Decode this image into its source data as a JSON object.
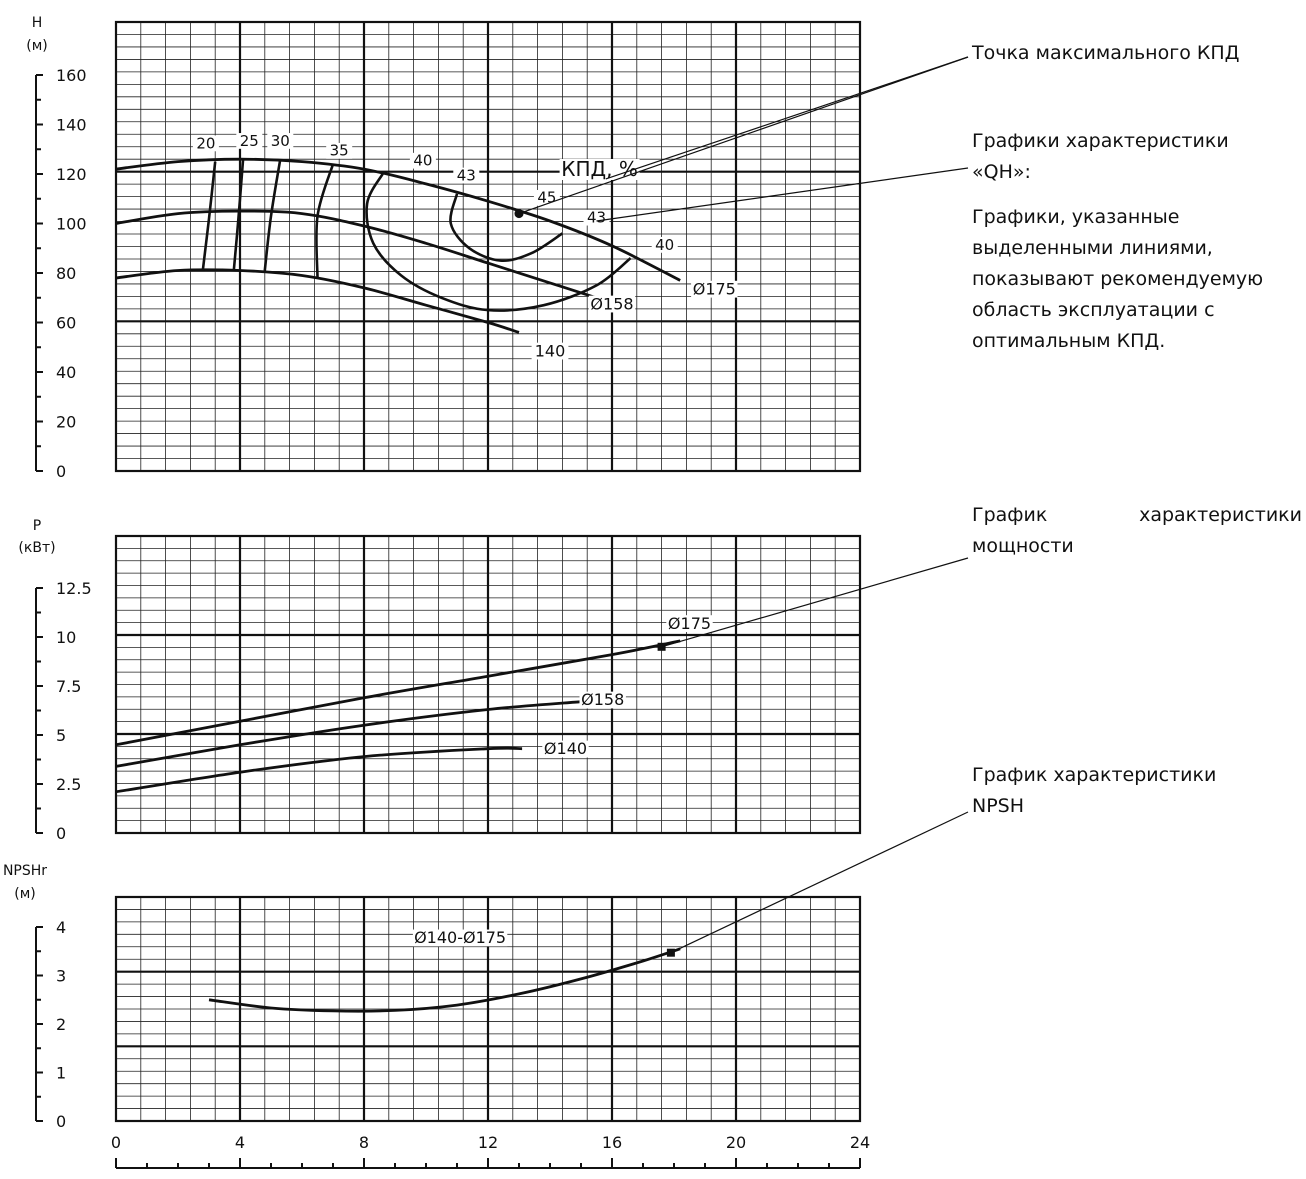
{
  "annotations": {
    "max_eff": "Точка максимального КПД",
    "qh_title_1": "Графики характеристики",
    "qh_title_2": "«QH»:",
    "qh_desc_1": "Графики, указанные",
    "qh_desc_2": "выделенными линиями,",
    "qh_desc_3": "показывают рекомендуемую",
    "qh_desc_4": "область эксплуатации с",
    "qh_desc_5": "оптимальным КПД.",
    "power_1": "График",
    "power_1b": "характеристики",
    "power_2": "мощности",
    "npsh_1": "График характеристики",
    "npsh_2": "NPSH"
  },
  "chart_data": [
    {
      "id": "qh",
      "type": "line",
      "ylabel": "H",
      "yunit": "(м)",
      "xlim": [
        0,
        24
      ],
      "ylim": [
        0,
        160
      ],
      "yticks": [
        "0",
        "20",
        "40",
        "60",
        "80",
        "100",
        "120",
        "140",
        "160"
      ],
      "series": [
        {
          "name": "Ø175",
          "x": [
            0,
            2,
            4,
            6,
            8,
            10,
            12,
            14,
            16,
            18.2
          ],
          "y": [
            122,
            125,
            126,
            125,
            122,
            116,
            109,
            101,
            91,
            77
          ]
        },
        {
          "name": "Ø158",
          "x": [
            0,
            2,
            4,
            6,
            8,
            10,
            12,
            14,
            15.5
          ],
          "y": [
            100,
            104,
            105,
            104,
            99,
            92,
            84,
            76,
            70
          ]
        },
        {
          "name": "140",
          "x": [
            0,
            2,
            4,
            6,
            8,
            10,
            12,
            13
          ],
          "y": [
            78,
            81,
            81,
            79,
            74,
            67,
            60,
            56
          ]
        }
      ],
      "eff_curves": [
        {
          "label": "20",
          "x": [
            2.8,
            3.0,
            3.2
          ],
          "y": [
            81,
            102,
            125
          ]
        },
        {
          "label": "25",
          "x": [
            3.8,
            3.95,
            4.1
          ],
          "y": [
            81,
            102,
            126
          ]
        },
        {
          "label": "30",
          "x": [
            4.8,
            5.0,
            5.3
          ],
          "y": [
            81,
            103,
            126
          ]
        },
        {
          "label": "35",
          "x": [
            6.5,
            6.5,
            7.0
          ],
          "y": [
            78,
            103,
            124
          ]
        },
        {
          "label": "40",
          "x": [
            8.6,
            8.1,
            8.3,
            9.2,
            10.5,
            12.0,
            13.8,
            15.5,
            16.6
          ],
          "y": [
            120,
            108,
            92,
            79,
            70,
            65,
            67,
            75,
            86
          ]
        },
        {
          "label": "43",
          "x": [
            11.0,
            10.8,
            11.4,
            12.4,
            13.4,
            14.4
          ],
          "y": [
            112,
            100,
            90,
            85,
            88,
            96
          ]
        }
      ],
      "eff_labels": [
        {
          "text": "20",
          "x": 2.9,
          "y": 131
        },
        {
          "text": "25",
          "x": 4.3,
          "y": 132
        },
        {
          "text": "30",
          "x": 5.3,
          "y": 132
        },
        {
          "text": "35",
          "x": 7.2,
          "y": 128
        },
        {
          "text": "40",
          "x": 9.9,
          "y": 124
        },
        {
          "text": "43",
          "x": 11.3,
          "y": 118
        },
        {
          "text": "45",
          "x": 13.9,
          "y": 109
        },
        {
          "text": "43",
          "x": 15.5,
          "y": 101
        },
        {
          "text": "40",
          "x": 17.7,
          "y": 90
        }
      ],
      "eff_title": "КПД, %",
      "curve_labels": [
        {
          "text": "Ø175",
          "x": 19.3,
          "y": 72
        },
        {
          "text": "Ø158",
          "x": 16.0,
          "y": 66
        },
        {
          "text": "140",
          "x": 14.0,
          "y": 47
        }
      ],
      "bep": {
        "x": 13.0,
        "y": 104
      },
      "grid": true
    },
    {
      "id": "power",
      "type": "line",
      "ylabel": "P",
      "yunit": "(кВт)",
      "xlim": [
        0,
        24
      ],
      "ylim": [
        0,
        12.5
      ],
      "yticks": [
        "0",
        "2.5",
        "5",
        "7.5",
        "10",
        "12.5"
      ],
      "series": [
        {
          "name": "Ø175",
          "x": [
            0,
            4,
            8,
            12,
            16,
            18.2
          ],
          "y": [
            4.5,
            5.7,
            6.9,
            8.0,
            9.1,
            9.8
          ]
        },
        {
          "name": "Ø158",
          "x": [
            0,
            4,
            8,
            12,
            15
          ],
          "y": [
            3.4,
            4.5,
            5.5,
            6.3,
            6.7
          ]
        },
        {
          "name": "Ø140",
          "x": [
            0,
            4,
            8,
            12,
            13.1
          ],
          "y": [
            2.1,
            3.1,
            3.9,
            4.3,
            4.3
          ]
        }
      ],
      "curve_labels": [
        {
          "text": "Ø175",
          "x": 18.5,
          "y": 10.5
        },
        {
          "text": "Ø158",
          "x": 15.7,
          "y": 6.6
        },
        {
          "text": "Ø140",
          "x": 14.5,
          "y": 4.1
        }
      ],
      "marker": {
        "x": 17.6,
        "y": 9.5
      },
      "grid": true
    },
    {
      "id": "npsh",
      "type": "line",
      "ylabel": "NPSHr",
      "yunit": "(м)",
      "xlim": [
        0,
        24
      ],
      "xlabel_ticks": [
        "0",
        "4",
        "8",
        "12",
        "16",
        "20",
        "24"
      ],
      "ylim": [
        0,
        4
      ],
      "yticks": [
        "0",
        "1",
        "2",
        "3",
        "4"
      ],
      "series": [
        {
          "name": "Ø140-Ø175",
          "x": [
            3,
            5,
            7,
            9,
            11,
            13,
            15,
            17,
            18.2
          ],
          "y": [
            2.5,
            2.33,
            2.27,
            2.28,
            2.39,
            2.62,
            2.93,
            3.3,
            3.55
          ]
        }
      ],
      "curve_labels": [
        {
          "text": "Ø140-Ø175",
          "x": 11.1,
          "y": 3.7
        }
      ],
      "marker": {
        "x": 17.9,
        "y": 3.47
      },
      "grid": true
    }
  ]
}
